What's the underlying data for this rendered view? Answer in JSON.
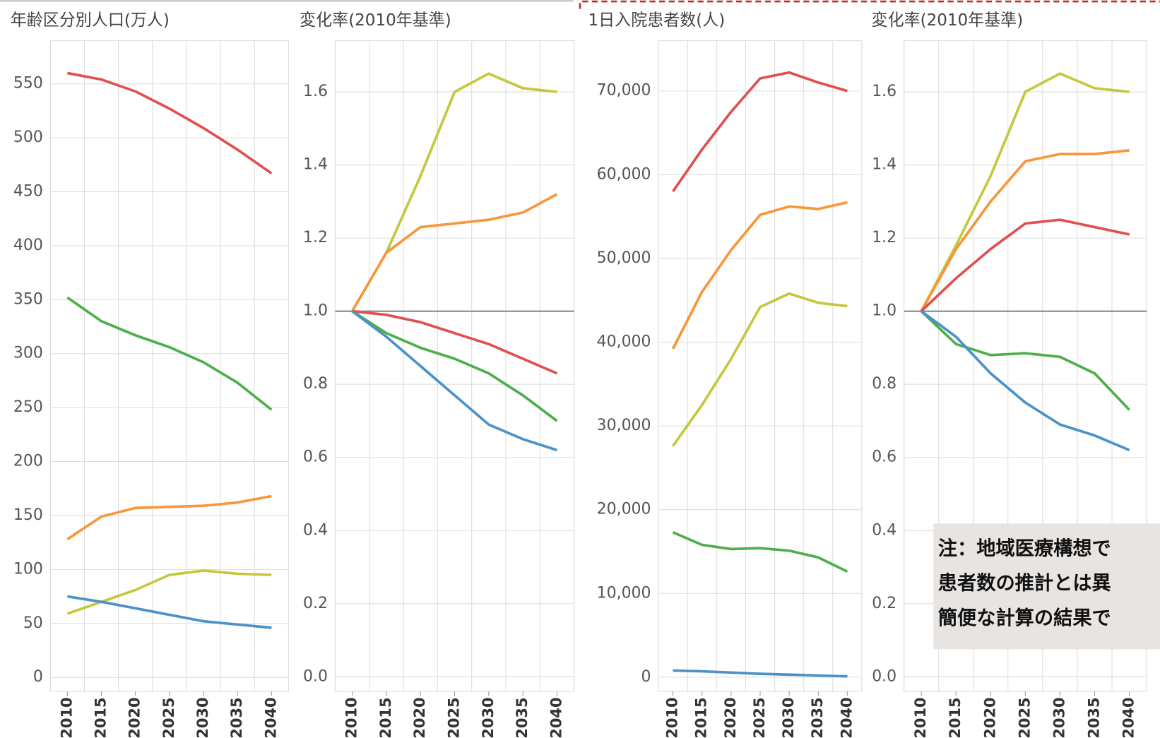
{
  "chart_data": [
    {
      "type": "line",
      "title": "年齢区分別人口(万人)",
      "categories": [
        "2010",
        "2015",
        "2020",
        "2025",
        "2030",
        "2035",
        "2040"
      ],
      "ylim": [
        -13,
        590
      ],
      "yticks": [
        0,
        50,
        100,
        150,
        200,
        250,
        300,
        350,
        400,
        450,
        500,
        550
      ],
      "grid": true,
      "series": [
        {
          "color": "#e05050",
          "values": [
            560,
            554,
            543,
            527,
            509,
            489,
            467
          ]
        },
        {
          "color": "#4caf4a",
          "values": [
            352,
            330,
            317,
            306,
            292,
            273,
            248
          ]
        },
        {
          "color": "#f8963a",
          "values": [
            128,
            149,
            157,
            158,
            159,
            162,
            168
          ]
        },
        {
          "color": "#c4c83c",
          "values": [
            59,
            70,
            81,
            95,
            99,
            96,
            95
          ]
        },
        {
          "color": "#4a92c9",
          "values": [
            75,
            70,
            64,
            58,
            52,
            49,
            46
          ]
        }
      ]
    },
    {
      "type": "line",
      "title": "変化率(2010年基準)",
      "categories": [
        "2010",
        "2015",
        "2020",
        "2025",
        "2030",
        "2035",
        "2040"
      ],
      "ylim": [
        -0.04,
        1.74
      ],
      "yticks": [
        {
          "value": 0,
          "label": "0.0"
        },
        0.2,
        0.4,
        0.6,
        0.8,
        {
          "value": 1,
          "label": "1.0"
        },
        1.2,
        1.4,
        1.6
      ],
      "grid": true,
      "reference_line": 1,
      "series": [
        {
          "color": "#c4c83c",
          "values": [
            1,
            1.16,
            1.37,
            1.6,
            1.65,
            1.61,
            1.6
          ]
        },
        {
          "color": "#f8963a",
          "values": [
            1,
            1.16,
            1.23,
            1.24,
            1.25,
            1.27,
            1.32
          ]
        },
        {
          "color": "#e05050",
          "values": [
            1,
            0.99,
            0.97,
            0.94,
            0.91,
            0.87,
            0.83
          ]
        },
        {
          "color": "#4caf4a",
          "values": [
            1,
            0.94,
            0.9,
            0.87,
            0.83,
            0.77,
            0.7
          ]
        },
        {
          "color": "#4a92c9",
          "values": [
            1,
            0.93,
            0.85,
            0.77,
            0.69,
            0.65,
            0.62
          ]
        }
      ]
    },
    {
      "type": "line",
      "title": "1日入院患者数(人)",
      "categories": [
        "2010",
        "2015",
        "2020",
        "2025",
        "2030",
        "2035",
        "2040"
      ],
      "ylim": [
        -1700,
        76000
      ],
      "yticks": [
        0,
        {
          "value": 10000,
          "label": "10,000"
        },
        {
          "value": 20000,
          "label": "20,000"
        },
        {
          "value": 30000,
          "label": "30,000"
        },
        {
          "value": 40000,
          "label": "40,000"
        },
        {
          "value": 50000,
          "label": "50,000"
        },
        {
          "value": 60000,
          "label": "60,000"
        },
        {
          "value": 70000,
          "label": "70,000"
        }
      ],
      "grid": true,
      "series": [
        {
          "color": "#e05050",
          "values": [
            58000,
            63000,
            67500,
            71500,
            72200,
            71000,
            70000
          ]
        },
        {
          "color": "#f8963a",
          "values": [
            39200,
            46000,
            51000,
            55200,
            56200,
            55900,
            56700
          ]
        },
        {
          "color": "#c4c83c",
          "values": [
            27600,
            32500,
            38000,
            44200,
            45800,
            44700,
            44300
          ]
        },
        {
          "color": "#4caf4a",
          "values": [
            17300,
            15800,
            15300,
            15400,
            15100,
            14300,
            12600
          ]
        },
        {
          "color": "#4a92c9",
          "values": [
            800,
            700,
            550,
            400,
            300,
            200,
            100
          ]
        }
      ]
    },
    {
      "type": "line",
      "title": "変化率(2010年基準)",
      "categories": [
        "2010",
        "2015",
        "2020",
        "2025",
        "2030",
        "2035",
        "2040"
      ],
      "ylim": [
        -0.04,
        1.74
      ],
      "yticks": [
        {
          "value": 0,
          "label": "0.0"
        },
        0.2,
        0.4,
        0.6,
        0.8,
        {
          "value": 1,
          "label": "1.0"
        },
        1.2,
        1.4,
        1.6
      ],
      "grid": true,
      "reference_line": 1,
      "annotations": [
        "注：地域医療構想で",
        "患者数の推計とは異",
        "簡便な計算の結果で"
      ],
      "series": [
        {
          "color": "#c4c83c",
          "values": [
            1,
            1.18,
            1.37,
            1.6,
            1.65,
            1.61,
            1.6
          ]
        },
        {
          "color": "#f8963a",
          "values": [
            1,
            1.17,
            1.3,
            1.41,
            1.43,
            1.43,
            1.44
          ]
        },
        {
          "color": "#e05050",
          "values": [
            1,
            1.09,
            1.17,
            1.24,
            1.25,
            1.23,
            1.21
          ]
        },
        {
          "color": "#4caf4a",
          "values": [
            1,
            0.91,
            0.88,
            0.885,
            0.875,
            0.83,
            0.73
          ]
        },
        {
          "color": "#4a92c9",
          "values": [
            1,
            0.93,
            0.83,
            0.75,
            0.69,
            0.66,
            0.62
          ]
        }
      ]
    }
  ]
}
